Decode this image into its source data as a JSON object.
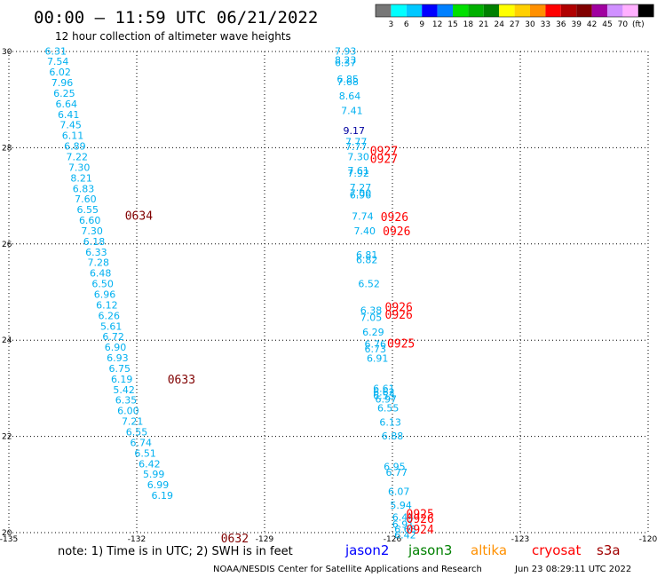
{
  "header": {
    "title": "00:00 — 11:59 UTC 06/21/2022",
    "subtitle": "12 hour collection of altimeter wave heights"
  },
  "colorbar": {
    "colors": [
      "#777777",
      "#00ffff",
      "#00c8ff",
      "#0000ff",
      "#0080ff",
      "#00e000",
      "#00b000",
      "#008000",
      "#ffff00",
      "#ffd000",
      "#ff9000",
      "#ff0000",
      "#b00000",
      "#800000",
      "#a000a0",
      "#d090ff",
      "#ffb0ff",
      "#000000"
    ],
    "labels": [
      "3",
      "6",
      "9",
      "12",
      "15",
      "18",
      "21",
      "24",
      "27",
      "30",
      "33",
      "36",
      "39",
      "42",
      "45",
      "70",
      "(ft)"
    ]
  },
  "chart_data": {
    "type": "scatter",
    "xlim": [
      -135,
      -120
    ],
    "ylim": [
      20,
      30
    ],
    "x_ticks": [
      "-135",
      "-132",
      "-129",
      "-126",
      "-123",
      "-120"
    ],
    "y_ticks": [
      "30",
      "28",
      "26",
      "24",
      "22",
      "20"
    ],
    "grid": true,
    "value_color": "#00b0f0",
    "dark_value_color": "#0000a0",
    "series": [
      {
        "satellite": "cryosat",
        "color": "#00b0f0",
        "points": [
          {
            "x": -133.9,
            "y": 29.94,
            "v": "6.31"
          },
          {
            "x": -133.85,
            "y": 29.72,
            "v": "7.54"
          },
          {
            "x": -133.8,
            "y": 29.5,
            "v": "6.02"
          },
          {
            "x": -133.75,
            "y": 29.28,
            "v": "7.96"
          },
          {
            "x": -133.7,
            "y": 29.06,
            "v": "6.25"
          },
          {
            "x": -133.65,
            "y": 28.84,
            "v": "6.64"
          },
          {
            "x": -133.6,
            "y": 28.62,
            "v": "6.41"
          },
          {
            "x": -133.55,
            "y": 28.4,
            "v": "7.45"
          },
          {
            "x": -133.5,
            "y": 28.18,
            "v": "6.11"
          },
          {
            "x": -133.45,
            "y": 27.96,
            "v": "6.89"
          },
          {
            "x": -133.4,
            "y": 27.74,
            "v": "7.22"
          },
          {
            "x": -133.35,
            "y": 27.52,
            "v": "7.30"
          },
          {
            "x": -133.3,
            "y": 27.3,
            "v": "8.21"
          },
          {
            "x": -133.25,
            "y": 27.08,
            "v": "6.83"
          },
          {
            "x": -133.2,
            "y": 26.86,
            "v": "7.60"
          },
          {
            "x": -133.15,
            "y": 26.64,
            "v": "6.55"
          },
          {
            "x": -133.1,
            "y": 26.42,
            "v": "6.60"
          },
          {
            "x": -133.05,
            "y": 26.2,
            "v": "7.30"
          },
          {
            "x": -133.0,
            "y": 25.98,
            "v": "6.18"
          },
          {
            "x": -132.95,
            "y": 25.76,
            "v": "6.33"
          },
          {
            "x": -132.9,
            "y": 25.54,
            "v": "7.28"
          },
          {
            "x": -132.85,
            "y": 25.32,
            "v": "6.48"
          },
          {
            "x": -132.8,
            "y": 25.1,
            "v": "6.50"
          },
          {
            "x": -132.75,
            "y": 24.88,
            "v": "6.96"
          },
          {
            "x": -132.7,
            "y": 24.66,
            "v": "6.12"
          },
          {
            "x": -132.65,
            "y": 24.44,
            "v": "6.26"
          },
          {
            "x": -132.6,
            "y": 24.22,
            "v": "5.61"
          },
          {
            "x": -132.55,
            "y": 24.0,
            "v": "6.72"
          },
          {
            "x": -132.5,
            "y": 23.78,
            "v": "6.90"
          },
          {
            "x": -132.45,
            "y": 23.56,
            "v": "6.93"
          },
          {
            "x": -132.4,
            "y": 23.34,
            "v": "6.75"
          },
          {
            "x": -132.35,
            "y": 23.12,
            "v": "6.19"
          },
          {
            "x": -132.3,
            "y": 22.9,
            "v": "5.42"
          },
          {
            "x": -132.25,
            "y": 22.68,
            "v": "6.35"
          },
          {
            "x": -132.2,
            "y": 22.46,
            "v": "6.00"
          },
          {
            "x": -132.1,
            "y": 22.24,
            "v": "7.21"
          },
          {
            "x": -132.0,
            "y": 22.02,
            "v": "6.55"
          },
          {
            "x": -131.9,
            "y": 21.8,
            "v": "6.74"
          },
          {
            "x": -131.8,
            "y": 21.58,
            "v": "6.51"
          },
          {
            "x": -131.7,
            "y": 21.36,
            "v": "6.42"
          },
          {
            "x": -131.6,
            "y": 21.14,
            "v": "5.99"
          },
          {
            "x": -131.5,
            "y": 20.92,
            "v": "6.99"
          },
          {
            "x": -131.4,
            "y": 20.7,
            "v": "6.19"
          },
          {
            "x": -127.1,
            "y": 29.94,
            "v": "7.93"
          },
          {
            "x": -127.1,
            "y": 29.75,
            "v": "8.23"
          },
          {
            "x": -127.1,
            "y": 29.7,
            "v": "6.37"
          },
          {
            "x": -127.05,
            "y": 29.35,
            "v": "6.85"
          },
          {
            "x": -127.05,
            "y": 29.3,
            "v": "7.68"
          },
          {
            "x": -127.0,
            "y": 29.0,
            "v": "8.64"
          },
          {
            "x": -126.95,
            "y": 28.7,
            "v": "7.41"
          },
          {
            "x": -126.9,
            "y": 28.28,
            "v": "9.17",
            "dark": true
          },
          {
            "x": -126.85,
            "y": 28.05,
            "v": "7.77"
          },
          {
            "x": -126.85,
            "y": 27.95,
            "v": "7.77"
          },
          {
            "x": -126.8,
            "y": 27.74,
            "v": "7.30"
          },
          {
            "x": -126.8,
            "y": 27.45,
            "v": "7.61"
          },
          {
            "x": -126.8,
            "y": 27.4,
            "v": "7.92"
          },
          {
            "x": -126.75,
            "y": 27.1,
            "v": "7.27"
          },
          {
            "x": -126.75,
            "y": 26.98,
            "v": "7.00"
          },
          {
            "x": -126.75,
            "y": 26.95,
            "v": "6.96"
          },
          {
            "x": -126.7,
            "y": 26.5,
            "v": "7.74"
          },
          {
            "x": -126.65,
            "y": 26.2,
            "v": "7.40"
          },
          {
            "x": -126.6,
            "y": 25.7,
            "v": "6.81"
          },
          {
            "x": -126.6,
            "y": 25.6,
            "v": "6.82"
          },
          {
            "x": -126.55,
            "y": 25.1,
            "v": "6.52"
          },
          {
            "x": -126.5,
            "y": 24.55,
            "v": "6.38"
          },
          {
            "x": -126.5,
            "y": 24.4,
            "v": "7.05"
          },
          {
            "x": -126.45,
            "y": 24.1,
            "v": "6.29"
          },
          {
            "x": -126.4,
            "y": 23.85,
            "v": "6.76"
          },
          {
            "x": -126.4,
            "y": 23.75,
            "v": "6.73"
          },
          {
            "x": -126.35,
            "y": 23.55,
            "v": "6.91"
          },
          {
            "x": -126.2,
            "y": 22.92,
            "v": "6.61"
          },
          {
            "x": -126.2,
            "y": 22.85,
            "v": "6.62"
          },
          {
            "x": -126.2,
            "y": 22.78,
            "v": "6.53"
          },
          {
            "x": -126.15,
            "y": 22.7,
            "v": "6.97"
          },
          {
            "x": -126.1,
            "y": 22.52,
            "v": "6.55"
          },
          {
            "x": -126.05,
            "y": 22.22,
            "v": "6.13"
          },
          {
            "x": -126.0,
            "y": 21.94,
            "v": "6.88"
          },
          {
            "x": -125.95,
            "y": 21.3,
            "v": "6.95"
          },
          {
            "x": -125.9,
            "y": 21.18,
            "v": "6.77"
          },
          {
            "x": -125.85,
            "y": 20.78,
            "v": "6.07"
          },
          {
            "x": -125.8,
            "y": 20.5,
            "v": "5.94"
          },
          {
            "x": -125.75,
            "y": 20.25,
            "v": "6.44"
          },
          {
            "x": -125.75,
            "y": 20.1,
            "v": "6.91"
          },
          {
            "x": -125.7,
            "y": 20.0,
            "v": "6.68"
          },
          {
            "x": -125.7,
            "y": 19.88,
            "v": "6.42"
          }
        ]
      }
    ],
    "time_labels": [
      {
        "x": -131.95,
        "y": 26.5,
        "t": "0634",
        "color": "#800000"
      },
      {
        "x": -130.95,
        "y": 23.1,
        "t": "0633",
        "color": "#800000"
      },
      {
        "x": -129.7,
        "y": 19.8,
        "t": "0632",
        "color": "#800000"
      },
      {
        "x": -126.2,
        "y": 27.85,
        "t": "0927",
        "color": "#ff0000"
      },
      {
        "x": -126.2,
        "y": 27.68,
        "t": "0927",
        "color": "#ff0000"
      },
      {
        "x": -125.95,
        "y": 26.48,
        "t": "0926",
        "color": "#ff0000"
      },
      {
        "x": -125.9,
        "y": 26.18,
        "t": "0926",
        "color": "#ff0000"
      },
      {
        "x": -125.85,
        "y": 24.6,
        "t": "0926",
        "color": "#ff0000"
      },
      {
        "x": -125.85,
        "y": 24.45,
        "t": "0926",
        "color": "#ff0000"
      },
      {
        "x": -125.8,
        "y": 23.85,
        "t": "0925",
        "color": "#ff0000"
      },
      {
        "x": -125.35,
        "y": 20.3,
        "t": "0925",
        "color": "#ff0000"
      },
      {
        "x": -125.35,
        "y": 20.2,
        "t": "0926",
        "color": "#ff0000"
      },
      {
        "x": -125.35,
        "y": 19.98,
        "t": "0924",
        "color": "#ff0000"
      }
    ]
  },
  "footer": {
    "note": "note: 1) Time is in UTC; 2) SWH is in feet",
    "satellites": [
      {
        "name": "jason2",
        "color": "#0000ff"
      },
      {
        "name": "jason3",
        "color": "#008000"
      },
      {
        "name": "altika",
        "color": "#ff9000"
      },
      {
        "name": "cryosat",
        "color": "#ff0000"
      },
      {
        "name": "s3a",
        "color": "#a00000"
      }
    ],
    "credit": "NOAA/NESDIS Center for Satellite Applications and Research",
    "timestamp": "Jun 23 08:29:11 UTC 2022"
  }
}
